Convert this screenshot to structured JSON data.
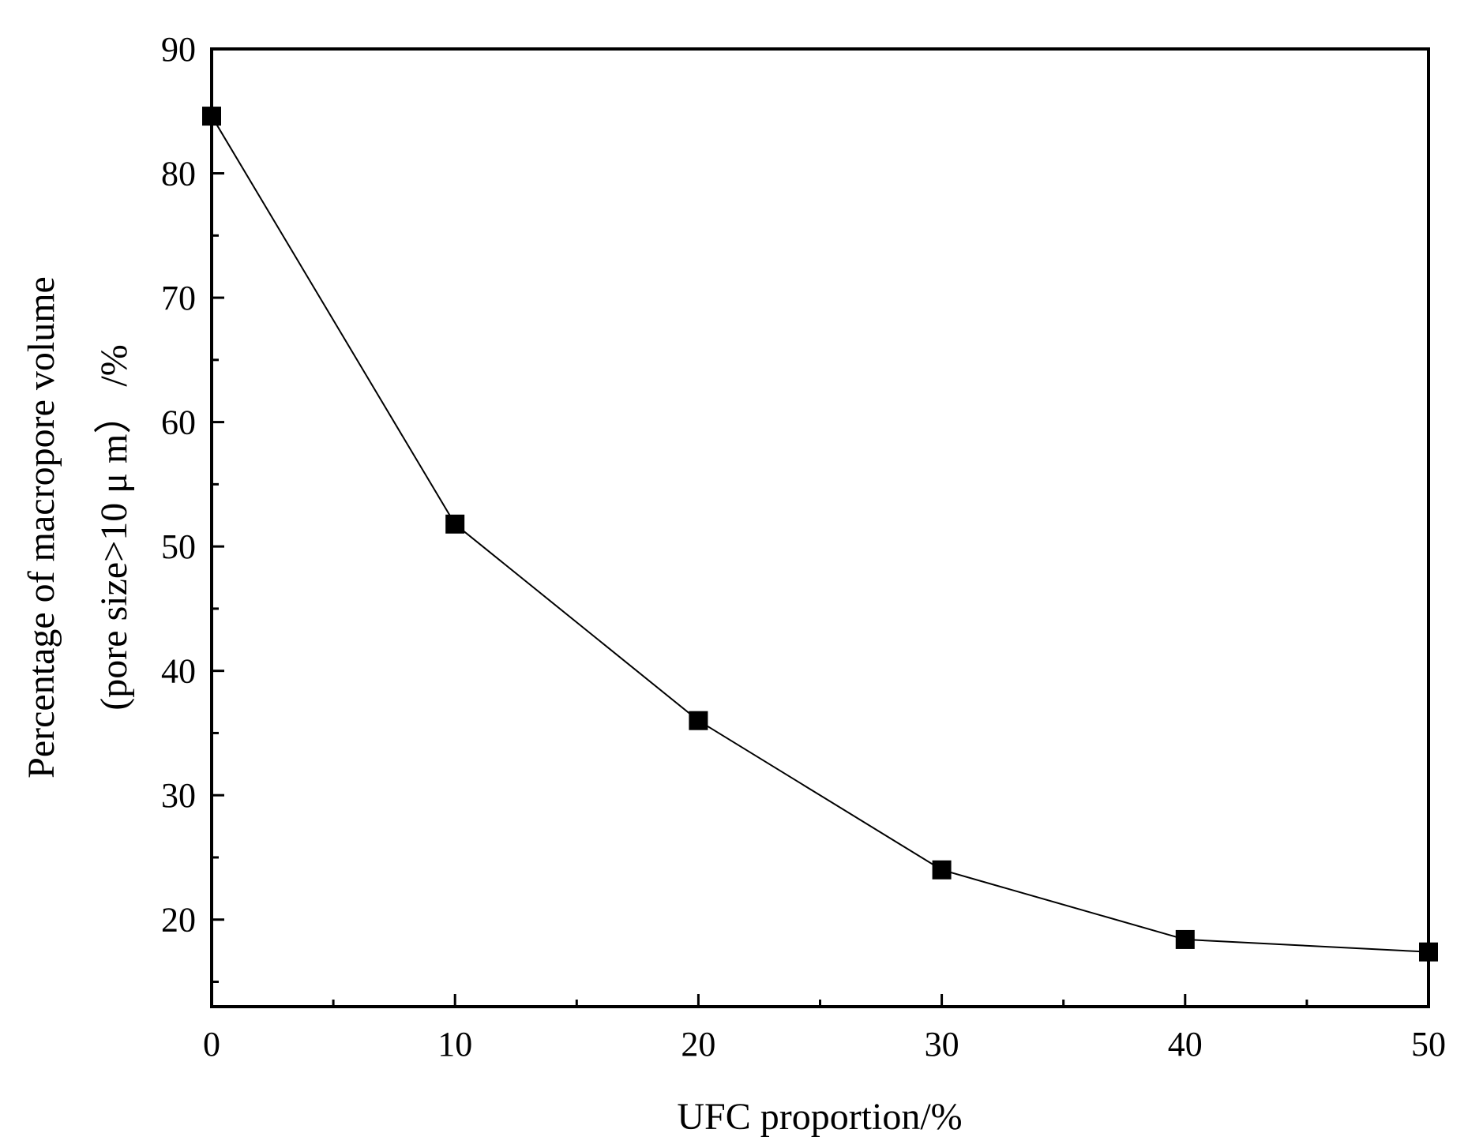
{
  "chart_data": {
    "type": "line",
    "title": "",
    "xlabel": "UFC proportion/%",
    "ylabel_lines": [
      "Percentage of macropore volume",
      "(pore size>10 μ m） /%"
    ],
    "xlim": [
      0,
      50
    ],
    "ylim": [
      13,
      90
    ],
    "xticks": [
      0,
      10,
      20,
      30,
      40,
      50
    ],
    "yticks": [
      20,
      30,
      40,
      50,
      60,
      70,
      80,
      90
    ],
    "xtick_labels": [
      "0",
      "10",
      "20",
      "30",
      "40",
      "50"
    ],
    "ytick_labels": [
      "20",
      "30",
      "40",
      "50",
      "60",
      "70",
      "80",
      "90"
    ],
    "grid": false,
    "legend": "none",
    "marker": "square",
    "series": [
      {
        "x": [
          0,
          10,
          20,
          30,
          40,
          50
        ],
        "y": [
          84.6,
          51.8,
          36.0,
          24.0,
          18.4,
          17.4
        ],
        "color": "#000000"
      }
    ]
  }
}
